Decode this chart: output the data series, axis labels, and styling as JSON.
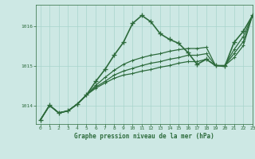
{
  "title": "Graphe pression niveau de la mer (hPa)",
  "bg_color": "#cde8e4",
  "plot_bg_color": "#cde8e4",
  "grid_color": "#a8d4cc",
  "line_color": "#2d6b3c",
  "xlim": [
    -0.5,
    23
  ],
  "ylim": [
    1013.55,
    1016.55
  ],
  "yticks": [
    1014,
    1015,
    1016
  ],
  "xticks": [
    0,
    1,
    2,
    3,
    4,
    5,
    6,
    7,
    8,
    9,
    10,
    11,
    12,
    13,
    14,
    15,
    16,
    17,
    18,
    19,
    20,
    21,
    22,
    23
  ],
  "series": [
    {
      "y": [
        1013.65,
        1014.02,
        1013.83,
        1013.88,
        1014.05,
        1014.28,
        1014.62,
        1014.92,
        1015.28,
        1015.6,
        1016.08,
        1016.28,
        1016.12,
        1015.82,
        1015.68,
        1015.58,
        1015.35,
        1015.05,
        1015.18,
        1015.02,
        1015.0,
        1015.6,
        1015.88,
        1016.28
      ],
      "lw": 1.2,
      "ms": 4.0,
      "marker": true
    },
    {
      "y": [
        1013.65,
        1014.02,
        1013.83,
        1013.88,
        1014.05,
        1014.28,
        1014.52,
        1014.72,
        1014.9,
        1015.05,
        1015.15,
        1015.22,
        1015.28,
        1015.32,
        1015.38,
        1015.42,
        1015.45,
        1015.45,
        1015.48,
        1015.02,
        1015.02,
        1015.42,
        1015.75,
        1016.28
      ],
      "lw": 0.9,
      "ms": 2.5,
      "marker": true
    },
    {
      "y": [
        1013.65,
        1014.02,
        1013.83,
        1013.88,
        1014.05,
        1014.28,
        1014.48,
        1014.62,
        1014.78,
        1014.88,
        1014.95,
        1015.02,
        1015.08,
        1015.12,
        1015.18,
        1015.22,
        1015.28,
        1015.28,
        1015.32,
        1015.02,
        1015.02,
        1015.32,
        1015.62,
        1016.28
      ],
      "lw": 0.9,
      "ms": 2.5,
      "marker": true
    },
    {
      "y": [
        1013.65,
        1014.02,
        1013.83,
        1013.88,
        1014.05,
        1014.28,
        1014.45,
        1014.58,
        1014.7,
        1014.78,
        1014.82,
        1014.88,
        1014.92,
        1014.98,
        1015.02,
        1015.08,
        1015.12,
        1015.12,
        1015.18,
        1015.02,
        1015.02,
        1015.22,
        1015.52,
        1016.28
      ],
      "lw": 0.9,
      "ms": 2.5,
      "marker": true
    }
  ]
}
